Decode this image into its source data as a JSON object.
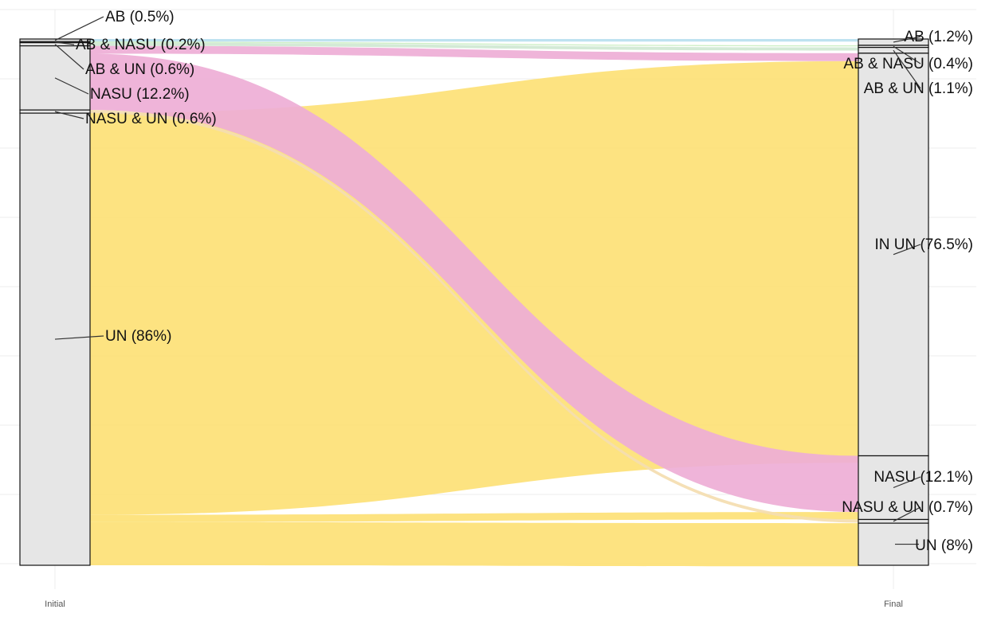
{
  "chart_data": {
    "type": "alluvial",
    "title": "",
    "xlabel": "",
    "ylabel": "",
    "grid": true,
    "axes": [
      "Initial",
      "Final"
    ],
    "colors": {
      "UN": "#fde27a",
      "NASU": "#eeaed6",
      "AB": "#b9e0ef",
      "AB & NASU": "#c9eec0",
      "AB & UN": "#cfe8d2",
      "NASU & UN": "#f4ddb0",
      "overlap": "#f7c56e"
    },
    "initial": [
      {
        "category": "AB",
        "label": "AB (0.5%)",
        "pct": 0.5
      },
      {
        "category": "AB & NASU",
        "label": "AB & NASU (0.2%)",
        "pct": 0.2
      },
      {
        "category": "AB & UN",
        "label": "AB & UN (0.6%)",
        "pct": 0.6
      },
      {
        "category": "NASU",
        "label": "NASU (12.2%)",
        "pct": 12.2
      },
      {
        "category": "NASU & UN",
        "label": "NASU & UN (0.6%)",
        "pct": 0.6
      },
      {
        "category": "UN",
        "label": "UN (86%)",
        "pct": 86
      }
    ],
    "final": [
      {
        "category": "AB",
        "label": "AB (1.2%)",
        "pct": 1.2
      },
      {
        "category": "AB & NASU",
        "label": "AB & NASU (0.4%)",
        "pct": 0.4
      },
      {
        "category": "AB & UN",
        "label": "AB & UN (1.1%)",
        "pct": 1.1
      },
      {
        "category": "IN UN",
        "label": "IN UN (76.5%)",
        "pct": 76.5
      },
      {
        "category": "NASU",
        "label": "NASU (12.1%)",
        "pct": 12.1
      },
      {
        "category": "NASU & UN",
        "label": "NASU & UN (0.7%)",
        "pct": 0.7
      },
      {
        "category": "UN",
        "label": "UN (8%)",
        "pct": 8
      }
    ],
    "flows": [
      {
        "from": "UN",
        "to": "IN UN",
        "pct": 76.4,
        "color": "UN"
      },
      {
        "from": "UN",
        "to": "NASU",
        "pct": 1.4,
        "color": "UN"
      },
      {
        "from": "UN",
        "to": "UN",
        "pct": 8.2,
        "color": "UN"
      },
      {
        "from": "NASU",
        "to": "NASU",
        "pct": 10.7,
        "color": "NASU"
      },
      {
        "from": "NASU",
        "to": "IN UN",
        "pct": 1.5,
        "color": "NASU"
      },
      {
        "from": "AB",
        "to": "AB",
        "pct": 0.5,
        "color": "AB"
      },
      {
        "from": "AB & NASU",
        "to": "AB & NASU",
        "pct": 0.2,
        "color": "AB & NASU"
      },
      {
        "from": "AB & UN",
        "to": "AB & UN",
        "pct": 0.6,
        "color": "AB & UN"
      },
      {
        "from": "NASU & UN",
        "to": "NASU & UN",
        "pct": 0.6,
        "color": "NASU & UN"
      }
    ]
  }
}
